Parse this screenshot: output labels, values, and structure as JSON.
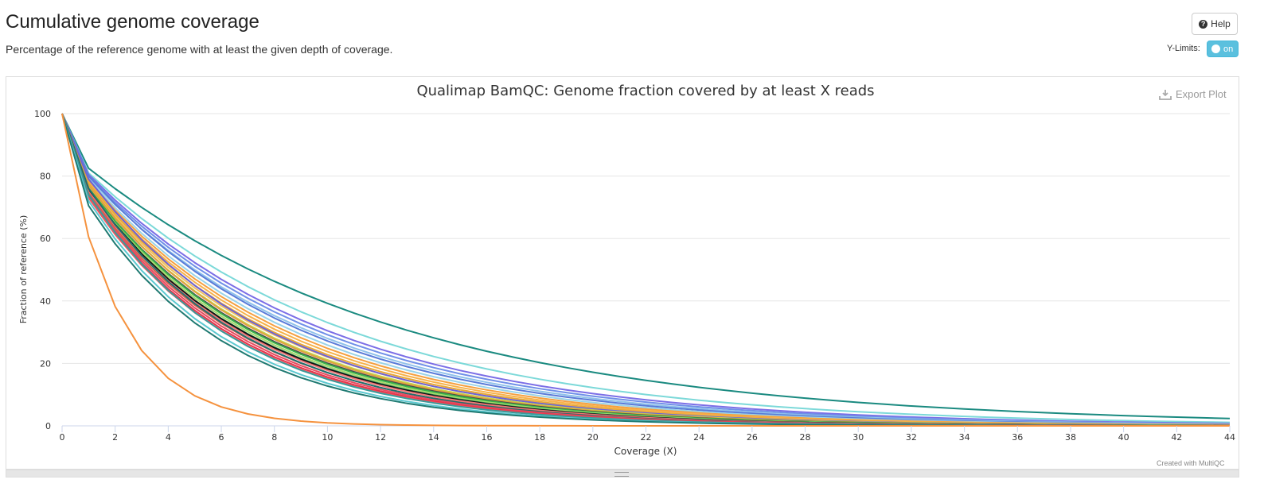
{
  "header": {
    "title": "Cumulative genome coverage",
    "subtitle": "Percentage of the reference genome with at least the given depth of coverage.",
    "help_label": "Help",
    "ylimits_label": "Y-Limits:",
    "ylimits_toggle": "on"
  },
  "plot": {
    "export_label": "Export Plot",
    "credit": "Created with MultiQC"
  },
  "chart_data": {
    "type": "line",
    "title": "Qualimap BamQC: Genome fraction covered by at least X reads",
    "xlabel": "Coverage (X)",
    "ylabel": "Fraction of reference (%)",
    "xlim": [
      0,
      44
    ],
    "ylim": [
      0,
      100
    ],
    "xticks": [
      0,
      2,
      4,
      6,
      8,
      10,
      12,
      14,
      16,
      18,
      20,
      22,
      24,
      26,
      28,
      30,
      32,
      34,
      36,
      38,
      40,
      42,
      44
    ],
    "yticks": [
      0,
      20,
      40,
      60,
      80,
      100
    ],
    "grid": "horizontal",
    "legend": "none",
    "series": [
      {
        "color": "#1a8a80",
        "v1": 82.5,
        "decay": 0.0826
      },
      {
        "color": "#7cd9d9",
        "v1": 81.0,
        "decay": 0.0995
      },
      {
        "color": "#7b6ee6",
        "v1": 80.5,
        "decay": 0.108
      },
      {
        "color": "#6f8fe8",
        "v1": 80.0,
        "decay": 0.112
      },
      {
        "color": "#8fc1ea",
        "v1": 79.5,
        "decay": 0.116
      },
      {
        "color": "#5a7bd8",
        "v1": 80.0,
        "decay": 0.12
      },
      {
        "color": "#9ad3e8",
        "v1": 79.0,
        "decay": 0.124
      },
      {
        "color": "#f5a040",
        "v1": 78.5,
        "decay": 0.128
      },
      {
        "color": "#f7b24a",
        "v1": 78.0,
        "decay": 0.132
      },
      {
        "color": "#e8a838",
        "v1": 77.5,
        "decay": 0.136
      },
      {
        "color": "#f0c060",
        "v1": 77.0,
        "decay": 0.139
      },
      {
        "color": "#6d63d6",
        "v1": 79.0,
        "decay": 0.141
      },
      {
        "color": "#c8d44a",
        "v1": 76.5,
        "decay": 0.143
      },
      {
        "color": "#e0a040",
        "v1": 77.0,
        "decay": 0.146
      },
      {
        "color": "#4a4a4a",
        "v1": 76.0,
        "decay": 0.148
      },
      {
        "color": "#3ab54a",
        "v1": 76.0,
        "decay": 0.15
      },
      {
        "color": "#a6d96a",
        "v1": 75.5,
        "decay": 0.153
      },
      {
        "color": "#2e8b57",
        "v1": 75.0,
        "decay": 0.156
      },
      {
        "color": "#111111",
        "v1": 75.5,
        "decay": 0.158
      },
      {
        "color": "#f07878",
        "v1": 75.0,
        "decay": 0.16
      },
      {
        "color": "#d6604d",
        "v1": 74.5,
        "decay": 0.164
      },
      {
        "color": "#1f6f6f",
        "v1": 76.0,
        "decay": 0.166
      },
      {
        "color": "#e84a5f",
        "v1": 74.0,
        "decay": 0.168
      },
      {
        "color": "#e6344a",
        "v1": 73.5,
        "decay": 0.172
      },
      {
        "color": "#f05560",
        "v1": 73.0,
        "decay": 0.175
      },
      {
        "color": "#3a9a9a",
        "v1": 74.0,
        "decay": 0.178
      },
      {
        "color": "#5bc8d0",
        "v1": 72.0,
        "decay": 0.185
      },
      {
        "color": "#1f7a72",
        "v1": 70.5,
        "decay": 0.19
      },
      {
        "color": "#f5923e",
        "v1": 60.5,
        "decay": 0.46
      }
    ]
  }
}
